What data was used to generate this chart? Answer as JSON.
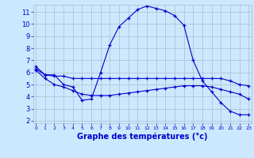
{
  "title": "Graphe des températures (°c)",
  "bg_color": "#cce8ff",
  "grid_color": "#aabbcc",
  "line_color": "#0000cc",
  "x_ticks": [
    0,
    1,
    2,
    3,
    4,
    5,
    6,
    7,
    8,
    9,
    10,
    11,
    12,
    13,
    14,
    15,
    16,
    17,
    18,
    19,
    20,
    21,
    22,
    23
  ],
  "y_ticks": [
    2,
    3,
    4,
    5,
    6,
    7,
    8,
    9,
    10,
    11
  ],
  "ylim": [
    1.8,
    11.6
  ],
  "xlim": [
    -0.3,
    23.3
  ],
  "series": [
    [
      6.5,
      5.8,
      5.8,
      5.0,
      4.8,
      3.7,
      3.8,
      6.0,
      8.3,
      9.8,
      10.5,
      11.2,
      11.5,
      11.3,
      11.1,
      10.7,
      9.9,
      7.0,
      5.3,
      4.4,
      3.5,
      2.8,
      2.5,
      2.5
    ],
    [
      6.3,
      5.8,
      5.7,
      5.7,
      5.5,
      5.5,
      5.5,
      5.5,
      5.5,
      5.5,
      5.5,
      5.5,
      5.5,
      5.5,
      5.5,
      5.5,
      5.5,
      5.5,
      5.5,
      5.5,
      5.5,
      5.3,
      5.0,
      4.9
    ],
    [
      6.2,
      5.5,
      5.0,
      4.8,
      4.5,
      4.2,
      4.1,
      4.1,
      4.1,
      4.2,
      4.3,
      4.4,
      4.5,
      4.6,
      4.7,
      4.8,
      4.9,
      4.9,
      4.9,
      4.8,
      4.6,
      4.4,
      4.2,
      3.8
    ]
  ],
  "xlabel_fontsize": 7,
  "ytick_fontsize": 6,
  "xtick_fontsize": 4.5
}
